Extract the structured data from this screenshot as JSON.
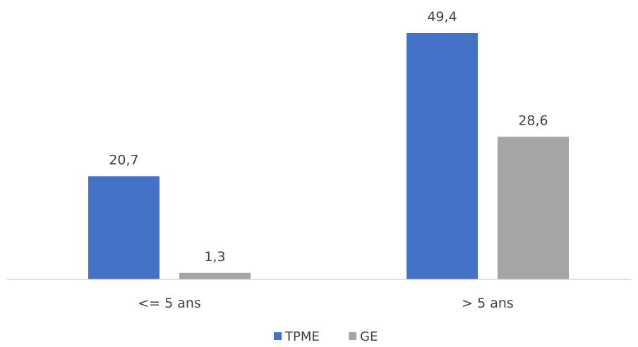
{
  "chart_data": {
    "type": "bar",
    "title": "",
    "xlabel": "",
    "ylabel": "",
    "categories": [
      "<= 5 ans",
      "> 5 ans"
    ],
    "series": [
      {
        "name": "TPME",
        "values": [
          20.7,
          49.4
        ],
        "labels": [
          "20,7",
          "49,4"
        ],
        "color": "#4472C4"
      },
      {
        "name": "GE",
        "values": [
          1.3,
          28.6
        ],
        "labels": [
          "1,3",
          "28,6"
        ],
        "color": "#A5A5A5"
      }
    ],
    "ylim": [
      0,
      49.4
    ],
    "grid": false,
    "legend": "bottom-center"
  }
}
